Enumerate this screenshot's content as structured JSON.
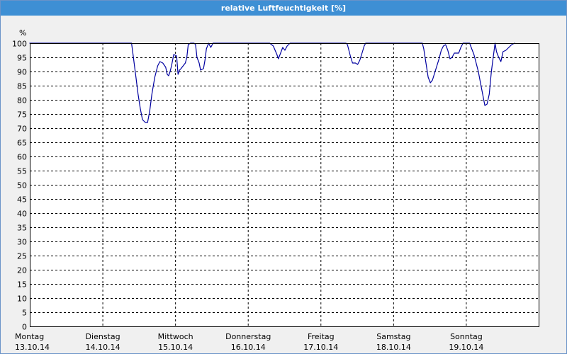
{
  "window": {
    "title": "relative Luftfeuchtigkeit [%]"
  },
  "chart_data": {
    "type": "line",
    "title": "relative Luftfeuchtigkeit [%]",
    "ylabel": "%",
    "ylim": [
      0,
      100
    ],
    "grid": true,
    "y_ticks": [
      "0",
      "5",
      "10",
      "15",
      "20",
      "25",
      "30",
      "35",
      "40",
      "45",
      "50",
      "55",
      "60",
      "65",
      "70",
      "75",
      "80",
      "85",
      "90",
      "95",
      "100"
    ],
    "x_ticks": [
      {
        "weekday": "Montag",
        "date": "13.10.14",
        "x": 0
      },
      {
        "weekday": "Dienstag",
        "date": "14.10.14",
        "x": 1
      },
      {
        "weekday": "Mittwoch",
        "date": "15.10.14",
        "x": 2
      },
      {
        "weekday": "Donnerstag",
        "date": "16.10.14",
        "x": 3
      },
      {
        "weekday": "Freitag",
        "date": "17.10.14",
        "x": 4
      },
      {
        "weekday": "Samstag",
        "date": "18.10.14",
        "x": 5
      },
      {
        "weekday": "Sonntag",
        "date": "19.10.14",
        "x": 6
      }
    ],
    "xlim": [
      0,
      7
    ],
    "series": [
      {
        "color": "#0000a0",
        "points": [
          [
            0.0,
            100
          ],
          [
            0.5,
            100
          ],
          [
            1.0,
            100
          ],
          [
            1.4,
            100
          ],
          [
            1.42,
            96
          ],
          [
            1.46,
            88
          ],
          [
            1.49,
            82
          ],
          [
            1.52,
            77
          ],
          [
            1.55,
            73
          ],
          [
            1.59,
            72
          ],
          [
            1.62,
            72
          ],
          [
            1.65,
            76
          ],
          [
            1.68,
            82
          ],
          [
            1.72,
            88
          ],
          [
            1.76,
            92
          ],
          [
            1.79,
            93.5
          ],
          [
            1.83,
            93
          ],
          [
            1.87,
            91.5
          ],
          [
            1.89,
            89
          ],
          [
            1.91,
            88.5
          ],
          [
            1.93,
            90
          ],
          [
            1.95,
            92
          ],
          [
            1.98,
            96
          ],
          [
            2.02,
            95.5
          ],
          [
            2.04,
            89
          ],
          [
            2.06,
            90.5
          ],
          [
            2.08,
            91
          ],
          [
            2.11,
            92
          ],
          [
            2.14,
            93
          ],
          [
            2.16,
            95
          ],
          [
            2.18,
            99.5
          ],
          [
            2.21,
            100
          ],
          [
            2.26,
            100
          ],
          [
            2.28,
            99.5
          ],
          [
            2.3,
            95
          ],
          [
            2.33,
            93
          ],
          [
            2.35,
            90.5
          ],
          [
            2.39,
            91
          ],
          [
            2.41,
            94
          ],
          [
            2.43,
            98
          ],
          [
            2.46,
            100
          ],
          [
            2.49,
            98.5
          ],
          [
            2.52,
            100
          ],
          [
            2.6,
            100
          ],
          [
            2.7,
            100
          ],
          [
            2.9,
            100
          ],
          [
            3.1,
            100
          ],
          [
            3.3,
            100
          ],
          [
            3.35,
            99
          ],
          [
            3.4,
            96
          ],
          [
            3.42,
            94.5
          ],
          [
            3.45,
            96.5
          ],
          [
            3.48,
            98.5
          ],
          [
            3.51,
            97.5
          ],
          [
            3.54,
            99
          ],
          [
            3.58,
            100
          ],
          [
            3.7,
            100
          ],
          [
            3.9,
            100
          ],
          [
            4.0,
            100
          ],
          [
            4.35,
            100
          ],
          [
            4.37,
            99.5
          ],
          [
            4.41,
            95.5
          ],
          [
            4.44,
            93
          ],
          [
            4.48,
            93
          ],
          [
            4.51,
            92.5
          ],
          [
            4.54,
            94
          ],
          [
            4.57,
            96.5
          ],
          [
            4.6,
            99
          ],
          [
            4.62,
            100
          ],
          [
            4.8,
            100
          ],
          [
            5.0,
            100
          ],
          [
            5.4,
            100
          ],
          [
            5.42,
            98
          ],
          [
            5.45,
            93
          ],
          [
            5.48,
            88
          ],
          [
            5.51,
            86
          ],
          [
            5.54,
            87
          ],
          [
            5.57,
            89.5
          ],
          [
            5.6,
            92
          ],
          [
            5.63,
            94.5
          ],
          [
            5.66,
            97.5
          ],
          [
            5.69,
            99
          ],
          [
            5.72,
            99.5
          ],
          [
            5.75,
            97.5
          ],
          [
            5.78,
            94.5
          ],
          [
            5.81,
            95
          ],
          [
            5.84,
            96.5
          ],
          [
            5.87,
            96.5
          ],
          [
            5.9,
            96.5
          ],
          [
            5.93,
            98.5
          ],
          [
            5.96,
            100
          ],
          [
            6.02,
            100
          ],
          [
            6.05,
            100
          ],
          [
            6.08,
            98
          ],
          [
            6.11,
            96
          ],
          [
            6.14,
            93
          ],
          [
            6.17,
            90
          ],
          [
            6.2,
            86
          ],
          [
            6.23,
            82
          ],
          [
            6.26,
            78
          ],
          [
            6.29,
            78.5
          ],
          [
            6.32,
            82
          ],
          [
            6.35,
            90
          ],
          [
            6.38,
            96
          ],
          [
            6.4,
            100
          ],
          [
            6.42,
            97
          ],
          [
            6.45,
            95
          ],
          [
            6.48,
            93.5
          ],
          [
            6.51,
            97
          ],
          [
            6.55,
            97.5
          ],
          [
            6.59,
            98.5
          ],
          [
            6.63,
            99.5
          ],
          [
            6.67,
            100
          ]
        ]
      }
    ]
  }
}
